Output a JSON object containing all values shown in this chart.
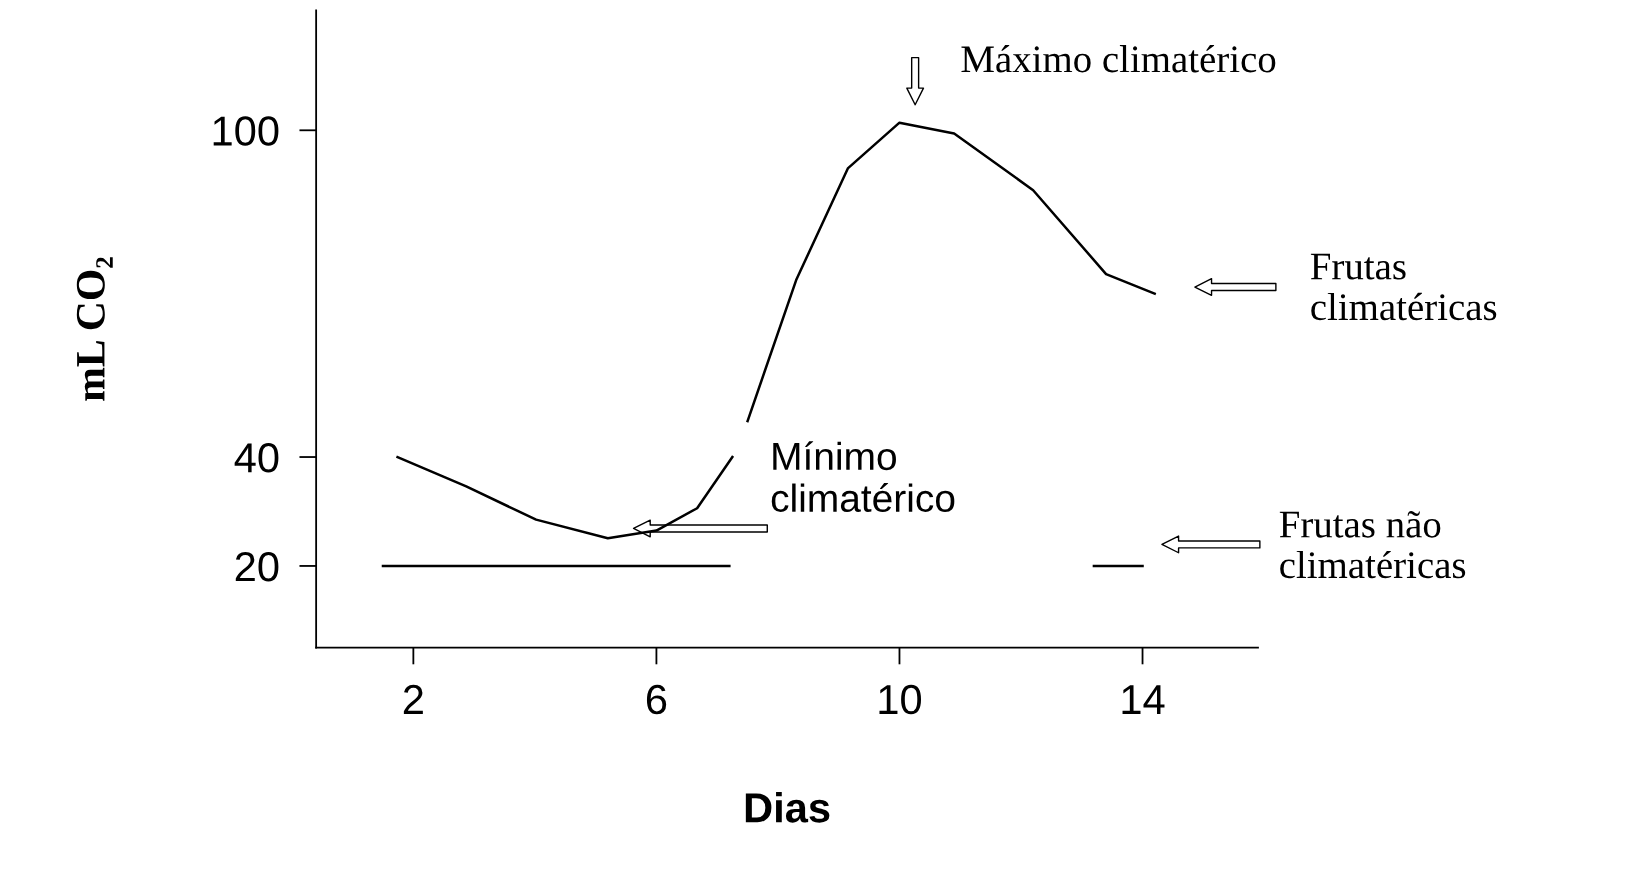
{
  "chart_data": {
    "type": "line",
    "xlabel": "Dias",
    "ylabel": "mL CO₂",
    "series": [
      {
        "color": "#000000",
        "x": [
          1.74,
          2.87,
          4.02,
          5.2,
          6.0,
          6.67,
          7.25,
          7.35,
          7.5,
          8.3,
          9.15,
          10.0,
          10.9,
          12.2,
          13.4,
          14.2
        ],
        "values": [
          40,
          34.6,
          28.5,
          25.1,
          26.5,
          30.6,
          40,
          null,
          46.6,
          72.5,
          93,
          101.4,
          99.4,
          89,
          73.6,
          70
        ]
      },
      {
        "color": "#000000",
        "x": [
          1.5,
          7.2,
          10.0,
          13.2,
          14.0
        ],
        "values": [
          20,
          20,
          null,
          20,
          20
        ]
      }
    ],
    "xlim": [
      0.4,
      15.9
    ],
    "ylim": [
      5,
      122
    ],
    "xticks": [
      2,
      6,
      10,
      14
    ],
    "yticks": [
      20,
      40,
      100
    ],
    "grid": false,
    "legend": false,
    "marker": "none",
    "line_style": "solid",
    "annotations": [
      "Máximo climatérico",
      "Frutas\nclimatéricas",
      "Mínimo\nclimatérico",
      "Frutas não\nclimatéricas"
    ]
  }
}
